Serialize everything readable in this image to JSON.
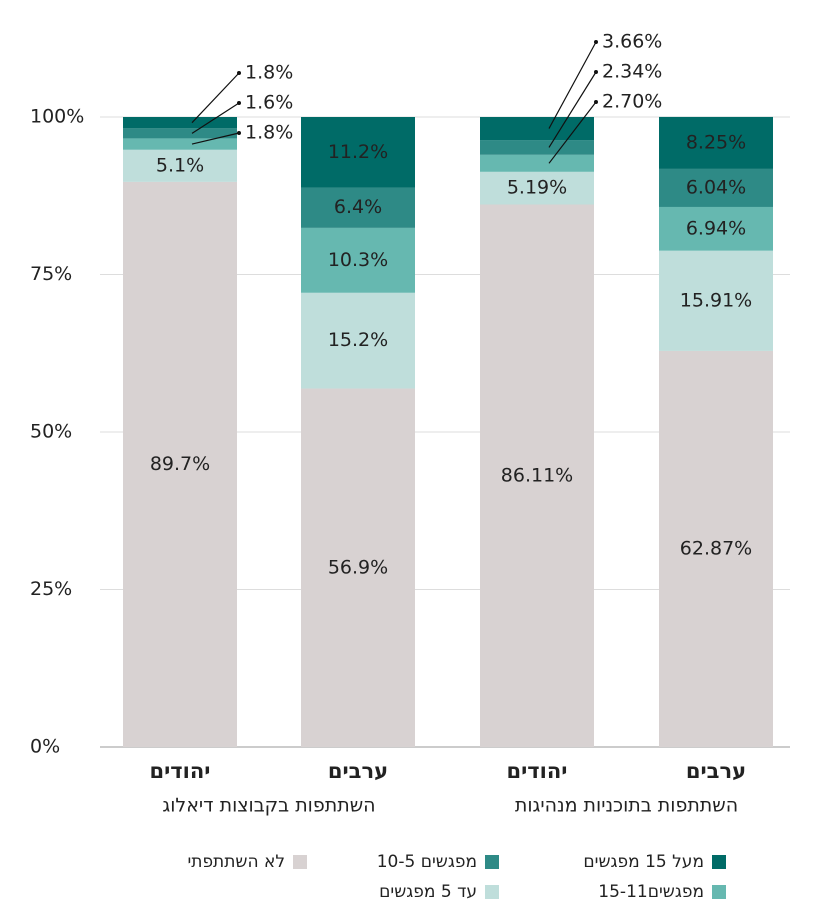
{
  "chart_data": {
    "type": "stacked_bar",
    "categories": [
      "יהודים",
      "ערבים",
      "יהודים",
      "ערבים"
    ],
    "groups": [
      {
        "label": "השתתפות בקבוצות דיאלוג",
        "span": [
          0,
          1
        ]
      },
      {
        "label": "השתתפות בתוכניות מנהיגות",
        "span": [
          2,
          3
        ]
      }
    ],
    "series": [
      {
        "name": "לא השתתפתי",
        "color": "#d8d2d2",
        "values": [
          89.7,
          56.9,
          86.11,
          62.87
        ],
        "value_labels": [
          "89.7%",
          "56.9%",
          "86.11%",
          "62.87%"
        ]
      },
      {
        "name": "עד 5 מפגשים",
        "color": "#bfdedb",
        "values": [
          5.1,
          15.2,
          5.19,
          15.91
        ],
        "value_labels": [
          "5.1%",
          "15.2%",
          "5.19%",
          "15.91%"
        ]
      },
      {
        "name": "15-11מפגשים",
        "color": "#66b8b0",
        "values": [
          1.8,
          10.3,
          2.7,
          6.94
        ],
        "value_labels": [
          "1.8%",
          "10.3%",
          "2.70%",
          "6.94%"
        ]
      },
      {
        "name": "10-5 מפגשים",
        "color": "#2e8a86",
        "values": [
          1.6,
          6.4,
          2.34,
          6.04
        ],
        "value_labels": [
          "1.6%",
          "6.4%",
          "2.34%",
          "6.04%"
        ]
      },
      {
        "name": "מעל 15 מפגשים",
        "color": "#006b67",
        "values": [
          1.8,
          11.2,
          3.66,
          8.25
        ],
        "value_labels": [
          "1.8%",
          "11.2%",
          "3.66%",
          "8.25%"
        ]
      }
    ],
    "ylim": [
      0,
      100
    ],
    "yticks": [
      {
        "value": 0,
        "label": "0%"
      },
      {
        "value": 25,
        "label": "25%"
      },
      {
        "value": 50,
        "label": "50%"
      },
      {
        "value": 75,
        "label": "75%"
      },
      {
        "value": 100,
        "label": "100%"
      }
    ],
    "grid": true
  }
}
